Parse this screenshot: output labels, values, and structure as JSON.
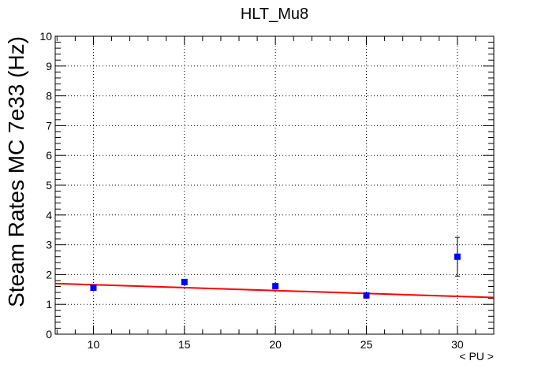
{
  "chart_data": {
    "type": "scatter",
    "title": "HLT_Mu8",
    "xlabel": "< PU >",
    "ylabel": "Steam Rates MC 7e33 (Hz)",
    "xlim": [
      7.9,
      32.0
    ],
    "ylim": [
      0,
      10
    ],
    "grid": true,
    "x_ticks": [
      10,
      15,
      20,
      25,
      30
    ],
    "y_ticks": [
      0,
      1,
      2,
      3,
      4,
      5,
      6,
      7,
      8,
      9,
      10
    ],
    "series": [
      {
        "type": "points",
        "color": "#0000ff",
        "x": [
          10,
          15,
          20,
          25,
          30
        ],
        "y": [
          1.56,
          1.75,
          1.61,
          1.3,
          2.6
        ],
        "yerr": [
          0.04,
          0.04,
          0.04,
          0.04,
          0.65
        ]
      },
      {
        "type": "fit-line",
        "color": "#ff0000",
        "x": [
          7.9,
          32.0
        ],
        "y": [
          1.7,
          1.23
        ]
      }
    ]
  }
}
